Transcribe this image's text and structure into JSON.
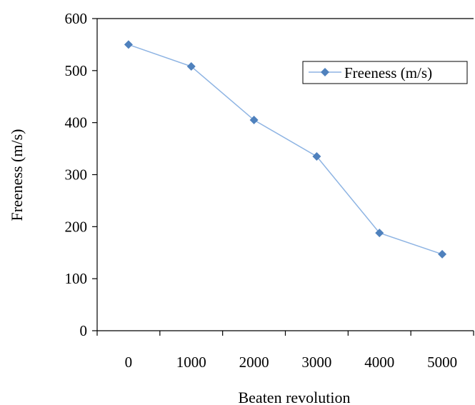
{
  "chart_data": {
    "type": "line",
    "categories": [
      "0",
      "1000",
      "2000",
      "3000",
      "4000",
      "5000"
    ],
    "series": [
      {
        "name": "Freeness (m/s)",
        "values": [
          550,
          508,
          405,
          335,
          188,
          147
        ],
        "color": "#4f81bd",
        "line_color": "#8eb4e3",
        "marker": "diamond"
      }
    ],
    "xlabel": "Beaten revolution",
    "ylabel": "Freeness (m/s)",
    "ylim": [
      0,
      600
    ],
    "yticks": [
      "0",
      "100",
      "200",
      "300",
      "400",
      "500",
      "600"
    ],
    "grid": false,
    "legend_position": "top-right"
  }
}
